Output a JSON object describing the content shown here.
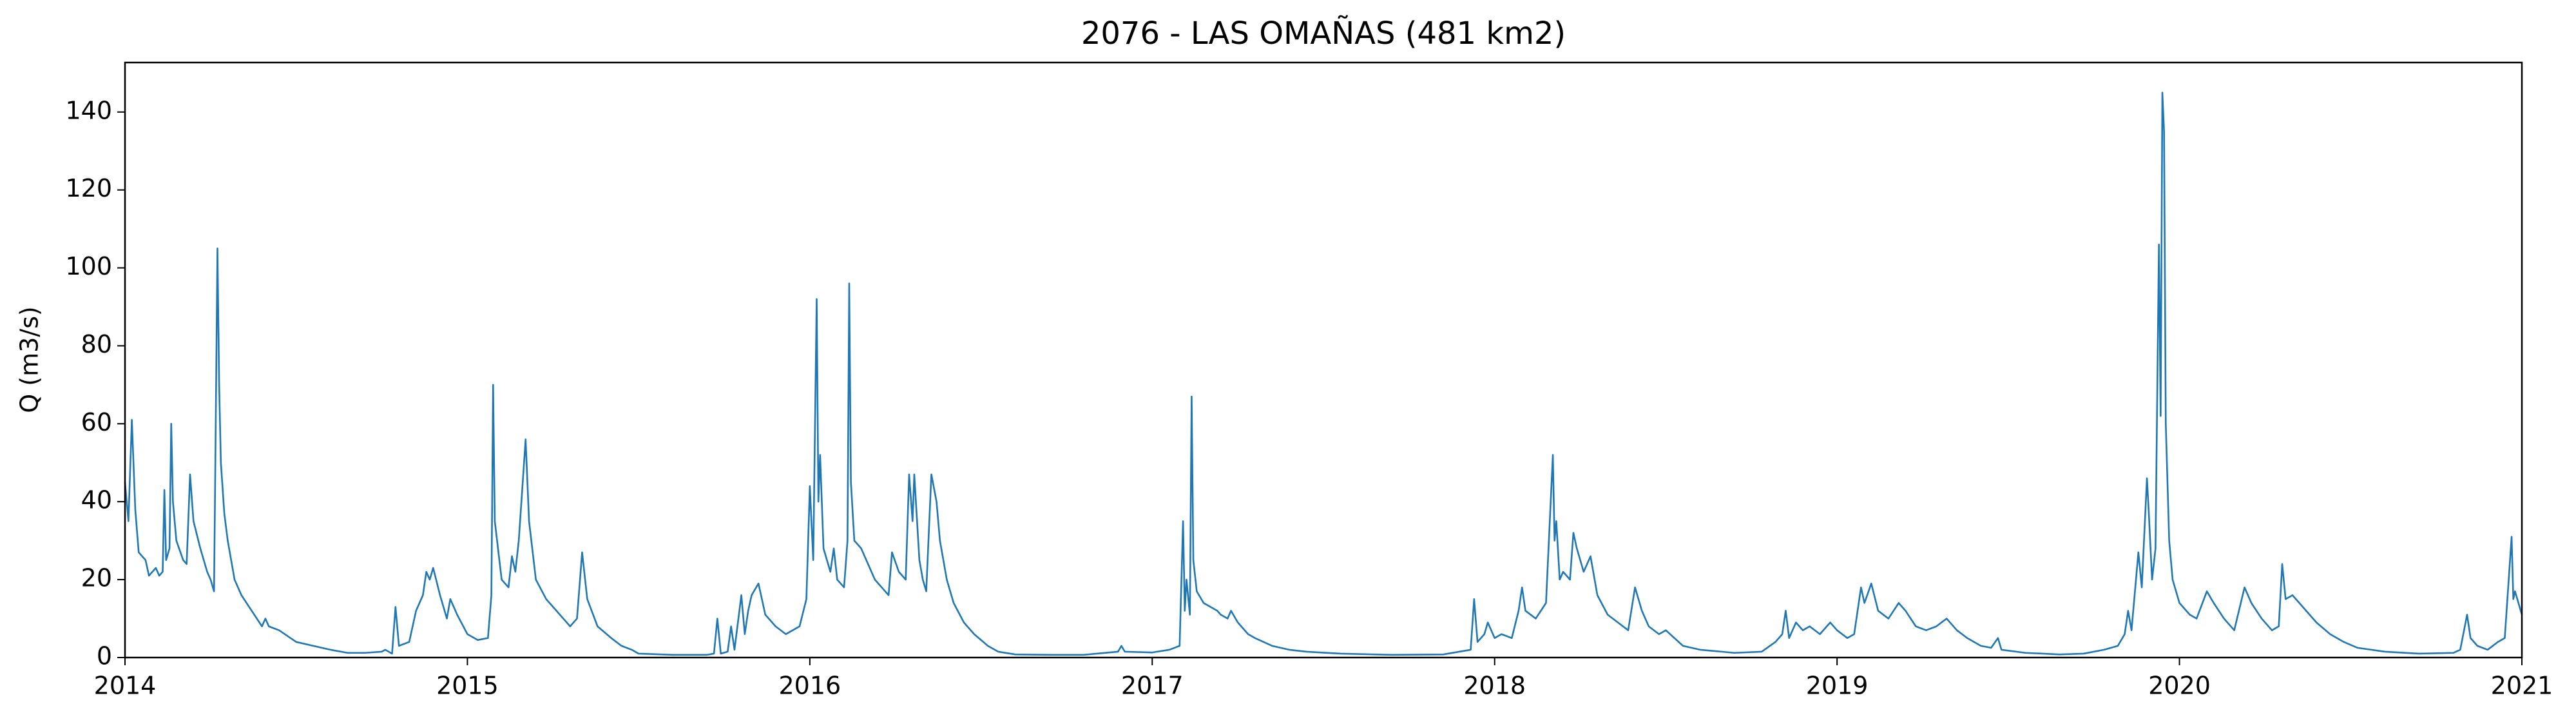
{
  "chart_data": {
    "type": "line",
    "title": "2076 - LAS OMAÑAS (481 km2)",
    "y_label": "Q (m3/s)",
    "xlim": [
      2014,
      2021
    ],
    "xticks": [
      2014,
      2015,
      2016,
      2017,
      2018,
      2019,
      2020,
      2021
    ],
    "ylim": [
      0,
      152.7
    ],
    "yticks": [
      0,
      20,
      40,
      60,
      80,
      100,
      120,
      140
    ],
    "x": [
      2014.0,
      2014.01,
      2014.02,
      2014.03,
      2014.04,
      2014.06,
      2014.07,
      2014.09,
      2014.1,
      2014.11,
      2014.115,
      2014.12,
      2014.13,
      2014.135,
      2014.14,
      2014.15,
      2014.17,
      2014.18,
      2014.19,
      2014.2,
      2014.22,
      2014.24,
      2014.25,
      2014.26,
      2014.265,
      2014.27,
      2014.275,
      2014.28,
      2014.29,
      2014.3,
      2014.32,
      2014.34,
      2014.37,
      2014.4,
      2014.41,
      2014.42,
      2014.45,
      2014.5,
      2014.55,
      2014.6,
      2014.65,
      2014.7,
      2014.75,
      2014.76,
      2014.78,
      2014.79,
      2014.8,
      2014.83,
      2014.84,
      2014.85,
      2014.87,
      2014.88,
      2014.89,
      2014.9,
      2014.92,
      2014.94,
      2014.95,
      2014.97,
      2015.0,
      2015.03,
      2015.06,
      2015.07,
      2015.075,
      2015.08,
      2015.1,
      2015.12,
      2015.13,
      2015.14,
      2015.15,
      2015.17,
      2015.18,
      2015.2,
      2015.23,
      2015.25,
      2015.28,
      2015.3,
      2015.32,
      2015.335,
      2015.35,
      2015.38,
      2015.42,
      2015.45,
      2015.48,
      2015.5,
      2015.6,
      2015.7,
      2015.72,
      2015.73,
      2015.74,
      2015.76,
      2015.77,
      2015.78,
      2015.8,
      2015.81,
      2015.82,
      2015.83,
      2015.85,
      2015.87,
      2015.9,
      2015.93,
      2015.95,
      2015.97,
      2015.99,
      2016.0,
      2016.01,
      2016.02,
      2016.025,
      2016.03,
      2016.04,
      2016.06,
      2016.07,
      2016.08,
      2016.1,
      2016.11,
      2016.115,
      2016.12,
      2016.13,
      2016.15,
      2016.17,
      2016.19,
      2016.21,
      2016.23,
      2016.24,
      2016.26,
      2016.28,
      2016.29,
      2016.3,
      2016.305,
      2016.32,
      2016.33,
      2016.34,
      2016.355,
      2016.37,
      2016.38,
      2016.4,
      2016.42,
      2016.45,
      2016.48,
      2016.52,
      2016.55,
      2016.6,
      2016.7,
      2016.8,
      2016.9,
      2016.91,
      2016.92,
      2017.0,
      2017.05,
      2017.08,
      2017.09,
      2017.095,
      2017.1,
      2017.11,
      2017.115,
      2017.12,
      2017.13,
      2017.15,
      2017.17,
      2017.19,
      2017.2,
      2017.22,
      2017.23,
      2017.25,
      2017.28,
      2017.3,
      2017.35,
      2017.4,
      2017.45,
      2017.55,
      2017.7,
      2017.85,
      2017.93,
      2017.94,
      2017.95,
      2017.97,
      2017.98,
      2018.0,
      2018.02,
      2018.05,
      2018.07,
      2018.08,
      2018.09,
      2018.12,
      2018.15,
      2018.17,
      2018.175,
      2018.18,
      2018.19,
      2018.2,
      2018.22,
      2018.23,
      2018.24,
      2018.26,
      2018.28,
      2018.3,
      2018.33,
      2018.36,
      2018.39,
      2018.41,
      2018.43,
      2018.45,
      2018.48,
      2018.5,
      2018.55,
      2018.6,
      2018.7,
      2018.78,
      2018.82,
      2018.84,
      2018.85,
      2018.86,
      2018.88,
      2018.9,
      2018.92,
      2018.95,
      2018.98,
      2019.0,
      2019.03,
      2019.05,
      2019.07,
      2019.08,
      2019.1,
      2019.12,
      2019.15,
      2019.18,
      2019.2,
      2019.23,
      2019.26,
      2019.29,
      2019.32,
      2019.35,
      2019.38,
      2019.42,
      2019.45,
      2019.47,
      2019.48,
      2019.55,
      2019.65,
      2019.72,
      2019.78,
      2019.82,
      2019.84,
      2019.85,
      2019.86,
      2019.88,
      2019.89,
      2019.905,
      2019.91,
      2019.92,
      2019.93,
      2019.94,
      2019.945,
      2019.95,
      2019.955,
      2019.96,
      2019.97,
      2019.98,
      2020.0,
      2020.03,
      2020.05,
      2020.08,
      2020.1,
      2020.13,
      2020.16,
      2020.19,
      2020.21,
      2020.24,
      2020.27,
      2020.29,
      2020.3,
      2020.31,
      2020.33,
      2020.36,
      2020.4,
      2020.44,
      2020.48,
      2020.52,
      2020.6,
      2020.7,
      2020.8,
      2020.82,
      2020.84,
      2020.85,
      2020.87,
      2020.9,
      2020.93,
      2020.95,
      2020.97,
      2020.975,
      2020.98,
      2020.99,
      2021.0
    ],
    "series": [
      {
        "color": "#1f77b4",
        "values": [
          45,
          35,
          61,
          38,
          27,
          25,
          21,
          23,
          21,
          22,
          43,
          25,
          28,
          60,
          40,
          30,
          25,
          24,
          47,
          35,
          28,
          22,
          20,
          17,
          60,
          105,
          70,
          50,
          37,
          30,
          20,
          16,
          12,
          8,
          10,
          8,
          7,
          4,
          3,
          2,
          1.2,
          1.2,
          1.5,
          2,
          1,
          13,
          3,
          4,
          8,
          12,
          16,
          22,
          20,
          23,
          16,
          10,
          15,
          11,
          6,
          4.5,
          5,
          16,
          70,
          35,
          20,
          18,
          26,
          22,
          30,
          56,
          35,
          20,
          15,
          13,
          10,
          8,
          10,
          27,
          15,
          8,
          5,
          3,
          2,
          1,
          0.7,
          0.7,
          1,
          10,
          1,
          1.5,
          8,
          2,
          16,
          6,
          12,
          16,
          19,
          11,
          8,
          6,
          7,
          8,
          15,
          44,
          25,
          92,
          40,
          52,
          28,
          22,
          28,
          20,
          18,
          30,
          96,
          45,
          30,
          28,
          24,
          20,
          18,
          16,
          27,
          22,
          20,
          47,
          35,
          47,
          25,
          20,
          17,
          47,
          40,
          30,
          20,
          14,
          9,
          6,
          3,
          1.5,
          0.8,
          0.7,
          0.7,
          1.5,
          3,
          1.5,
          1.3,
          2,
          3,
          35,
          12,
          20,
          11,
          67,
          25,
          17,
          14,
          13,
          12,
          11,
          10,
          12,
          9,
          6,
          5,
          3,
          2,
          1.5,
          1,
          0.7,
          0.8,
          2,
          15,
          4,
          6,
          9,
          5,
          6,
          5,
          12,
          18,
          12,
          10,
          14,
          52,
          30,
          35,
          20,
          22,
          20,
          32,
          28,
          22,
          26,
          16,
          11,
          9,
          7,
          18,
          12,
          8,
          6,
          7,
          3,
          2,
          1.2,
          1.5,
          4,
          6,
          12,
          5,
          9,
          7,
          8,
          6,
          9,
          7,
          5,
          6,
          18,
          14,
          19,
          12,
          10,
          14,
          12,
          8,
          7,
          8,
          10,
          7,
          5,
          3,
          2.5,
          5,
          2,
          1.2,
          0.8,
          1,
          2,
          3,
          6,
          12,
          7,
          27,
          18,
          46,
          38,
          20,
          28,
          106,
          62,
          145,
          135,
          60,
          30,
          20,
          14,
          11,
          10,
          17,
          14,
          10,
          7,
          18,
          14,
          10,
          7,
          8,
          24,
          15,
          16,
          13,
          9,
          6,
          4,
          2.5,
          1.5,
          1,
          1.2,
          2,
          11,
          5,
          3,
          2,
          4,
          5,
          31,
          15,
          17,
          14,
          11
        ]
      }
    ]
  }
}
